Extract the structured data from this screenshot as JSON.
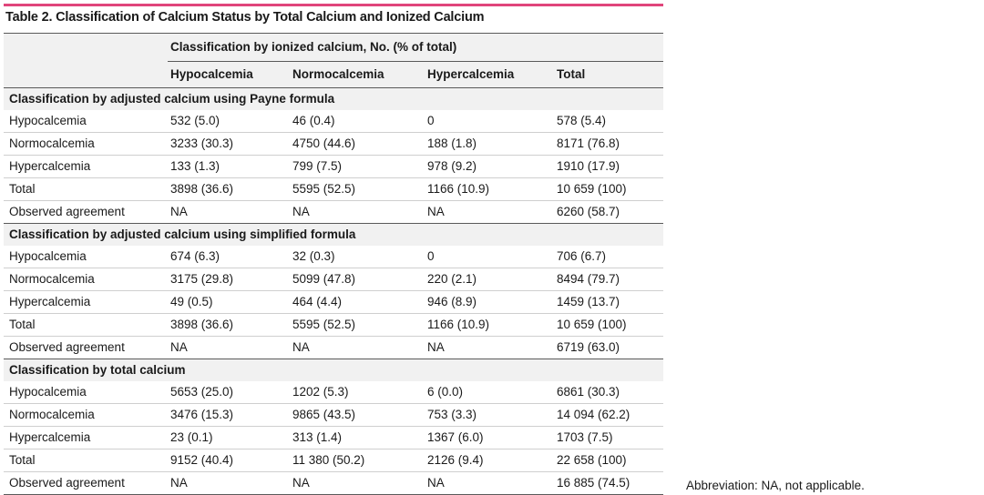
{
  "title": "Table 2. Classification of Calcium Status by Total Calcium and Ionized Calcium",
  "header": {
    "span_label": "Classification by ionized calcium, No. (% of total)",
    "columns": [
      "Hypocalcemia",
      "Normocalcemia",
      "Hypercalcemia",
      "Total"
    ]
  },
  "sections": [
    {
      "title": "Classification by adjusted calcium using Payne formula",
      "rows": [
        {
          "label": "Hypocalcemia",
          "cells": [
            "532 (5.0)",
            "46 (0.4)",
            "0",
            "578 (5.4)"
          ]
        },
        {
          "label": "Normocalcemia",
          "cells": [
            "3233 (30.3)",
            "4750 (44.6)",
            "188 (1.8)",
            "8171 (76.8)"
          ]
        },
        {
          "label": "Hypercalcemia",
          "cells": [
            "133 (1.3)",
            "799 (7.5)",
            "978 (9.2)",
            "1910 (17.9)"
          ]
        },
        {
          "label": "Total",
          "cells": [
            "3898 (36.6)",
            "5595 (52.5)",
            "1166 (10.9)",
            "10 659 (100)"
          ]
        },
        {
          "label": "Observed agreement",
          "cells": [
            "NA",
            "NA",
            "NA",
            "6260 (58.7)"
          ]
        }
      ]
    },
    {
      "title": "Classification by adjusted calcium using simplified formula",
      "rows": [
        {
          "label": "Hypocalcemia",
          "cells": [
            "674 (6.3)",
            "32 (0.3)",
            "0",
            "706 (6.7)"
          ]
        },
        {
          "label": "Normocalcemia",
          "cells": [
            "3175 (29.8)",
            "5099 (47.8)",
            "220 (2.1)",
            "8494 (79.7)"
          ]
        },
        {
          "label": "Hypercalcemia",
          "cells": [
            "49 (0.5)",
            "464 (4.4)",
            "946 (8.9)",
            "1459 (13.7)"
          ]
        },
        {
          "label": "Total",
          "cells": [
            "3898 (36.6)",
            "5595 (52.5)",
            "1166 (10.9)",
            "10 659 (100)"
          ]
        },
        {
          "label": "Observed agreement",
          "cells": [
            "NA",
            "NA",
            "NA",
            "6719 (63.0)"
          ]
        }
      ]
    },
    {
      "title": "Classification by total calcium",
      "rows": [
        {
          "label": "Hypocalcemia",
          "cells": [
            "5653 (25.0)",
            "1202 (5.3)",
            "6 (0.0)",
            "6861 (30.3)"
          ]
        },
        {
          "label": "Normocalcemia",
          "cells": [
            "3476 (15.3)",
            "9865 (43.5)",
            "753 (3.3)",
            "14 094 (62.2)"
          ]
        },
        {
          "label": "Hypercalcemia",
          "cells": [
            "23 (0.1)",
            "313 (1.4)",
            "1367 (6.0)",
            "1703 (7.5)"
          ]
        },
        {
          "label": "Total",
          "cells": [
            "9152 (40.4)",
            "11 380 (50.2)",
            "2126 (9.4)",
            "22 658 (100)"
          ]
        },
        {
          "label": "Observed agreement",
          "cells": [
            "NA",
            "NA",
            "NA",
            "16 885 (74.5)"
          ]
        }
      ]
    }
  ],
  "footnote": "Abbreviation: NA, not applicable.",
  "colors": {
    "accent_rule": "#e0457b",
    "header_background": "#f1f1f1",
    "row_background": "#ffffff"
  }
}
